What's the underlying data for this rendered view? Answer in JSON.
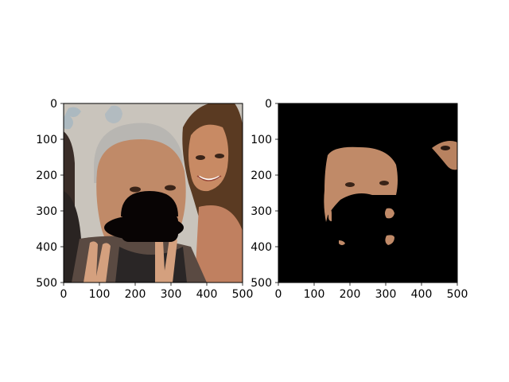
{
  "figure": {
    "background": "#ffffff"
  },
  "chart_data": [
    {
      "type": "image",
      "title": "",
      "xlabel": "",
      "ylabel": "",
      "xlim": [
        0,
        500
      ],
      "ylim": [
        500,
        0
      ],
      "x_ticks": [
        0,
        100,
        200,
        300,
        400,
        500
      ],
      "y_ticks": [
        0,
        100,
        200,
        300,
        400,
        500
      ],
      "image_description": "photo",
      "colors": {
        "background": "#c9c4bc",
        "skin": "#c08a68",
        "hair_gray": "#b8b6b2",
        "hair_brown": "#5a3a22",
        "mask_hat": "#080404"
      }
    },
    {
      "type": "image",
      "title": "",
      "xlabel": "",
      "ylabel": "",
      "xlim": [
        0,
        500
      ],
      "ylim": [
        500,
        0
      ],
      "x_ticks": [
        0,
        100,
        200,
        300,
        400,
        500
      ],
      "y_ticks": [
        0,
        100,
        200,
        300,
        400,
        500
      ],
      "image_description": "masked",
      "colors": {
        "background": "#000000",
        "skin": "#c08a68"
      }
    }
  ]
}
